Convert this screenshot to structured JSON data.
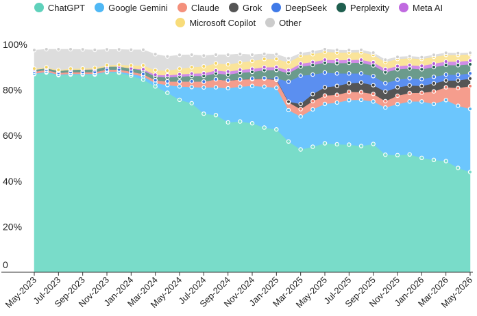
{
  "chart_data": {
    "type": "area",
    "stacked": true,
    "markers": "circle",
    "title": "",
    "xlabel": "",
    "ylabel": "",
    "ylim": [
      0,
      100
    ],
    "yticks": [
      0,
      20,
      40,
      60,
      80,
      100
    ],
    "ytick_labels": [
      "0",
      "20%",
      "40%",
      "60%",
      "80%",
      "100%"
    ],
    "legend_position": "top-center",
    "x": [
      "May-2023",
      "Jun-2023",
      "Jul-2023",
      "Aug-2023",
      "Sep-2023",
      "Oct-2023",
      "Nov-2023",
      "Dec-2023",
      "Jan-2024",
      "Feb-2024",
      "Mar-2024",
      "Apr-2024",
      "May-2024",
      "Jun-2024",
      "Jul-2024",
      "Aug-2024",
      "Sep-2024",
      "Oct-2024",
      "Nov-2024",
      "Dec-2024",
      "Jan-2025",
      "Feb-2025",
      "Mar-2025",
      "Apr-2025",
      "May-2025",
      "Jun-2025",
      "Jul-2025",
      "Aug-2025",
      "Sep-2025",
      "Oct-2025",
      "Nov-2025",
      "Dec-2025",
      "Jan-2026",
      "Feb-2026",
      "Mar-2026",
      "Apr-2026",
      "May-2026"
    ],
    "x_tick_labels": [
      "May-2023",
      "Jul-2023",
      "Sep-2023",
      "Nov-2023",
      "Jan-2024",
      "Mar-2024",
      "May-2024",
      "Jul-2024",
      "Sep-2024",
      "Nov-2024",
      "Jan-2025",
      "Mar-2025",
      "May-2025",
      "Jul-2025",
      "Sep-2025",
      "Nov-2025",
      "Jan-2026",
      "Mar-2026",
      "May-2026"
    ],
    "series": [
      {
        "name": "ChatGPT",
        "color": "#79dcc9",
        "marker_color": "#79dcc9",
        "values": [
          87,
          87.7,
          86.5,
          86.8,
          86.8,
          86.8,
          87.8,
          87.6,
          86.3,
          84.6,
          81.6,
          78.8,
          75.7,
          74.2,
          69.6,
          69,
          65.8,
          66.2,
          65.4,
          63.5,
          62.7,
          57.4,
          53.9,
          55.1,
          56.6,
          56.2,
          56.0,
          55.4,
          56.3,
          51.6,
          51.4,
          51.7,
          50.2,
          49.3,
          48.8,
          45.8,
          44.0
        ]
      },
      {
        "name": "Google Gemini",
        "color": "#6cc6fd",
        "marker_color": "#5ab8f0",
        "values": [
          0.2,
          0.3,
          0.3,
          0.3,
          0.3,
          0.3,
          0.3,
          0.5,
          0.8,
          1.4,
          1.4,
          3.4,
          5.9,
          7.1,
          11.5,
          12.2,
          15,
          15.3,
          16.4,
          18,
          18.3,
          13.8,
          14.5,
          16.4,
          17.3,
          18.3,
          19.6,
          20.3,
          18.7,
          20.7,
          22.4,
          23.3,
          24.8,
          24.6,
          26.8,
          27.3,
          27.7
        ]
      },
      {
        "name": "Claude",
        "color": "#f59d8d",
        "marker_color": "#f08070",
        "values": [
          0.9,
          0.8,
          0.8,
          0.8,
          0.8,
          0.8,
          0.9,
          0.9,
          1,
          1,
          1.3,
          1.6,
          2.1,
          2.5,
          2.6,
          3.5,
          3.3,
          3.1,
          3,
          3.5,
          3.4,
          3.4,
          3.2,
          3.6,
          3.7,
          3.4,
          3.6,
          3.4,
          3.3,
          2.8,
          3.7,
          3.7,
          3.8,
          5.5,
          5.6,
          7.8,
          10.0
        ]
      },
      {
        "name": "Grok",
        "color": "#555555",
        "marker_color": "#444444",
        "values": [
          0,
          0,
          0,
          0,
          0,
          0,
          0,
          0,
          0,
          0,
          0,
          0,
          0,
          0,
          0,
          0,
          0.1,
          0.1,
          0.2,
          0.2,
          0.3,
          0.3,
          2.3,
          3.1,
          3.6,
          3.9,
          3.8,
          4.2,
          3.8,
          4.2,
          3.7,
          3.3,
          3.0,
          3.5,
          3.0,
          3.3,
          3.3
        ]
      },
      {
        "name": "DeepSeek",
        "color": "#5b8ff0",
        "marker_color": "#3d78e8",
        "values": [
          0,
          0,
          0,
          0,
          0,
          0,
          0,
          0,
          0,
          0,
          0,
          0,
          0,
          0,
          0,
          0,
          0,
          0,
          0,
          0,
          0.5,
          8.8,
          12.4,
          8.6,
          6.5,
          5.5,
          4.3,
          4.0,
          4.0,
          3.7,
          3.4,
          3.2,
          3.0,
          2.9,
          2.6,
          2.5,
          2.3
        ]
      },
      {
        "name": "Perplexity",
        "color": "#6b9b8c",
        "marker_color": "#1f5f4f",
        "values": [
          0.8,
          0.8,
          0.8,
          1,
          1.1,
          1.2,
          1.3,
          1.3,
          1.4,
          1.6,
          1.6,
          1.8,
          2.2,
          2.4,
          2.5,
          2.6,
          2.6,
          2.9,
          3,
          3.5,
          3.6,
          3.7,
          4,
          4.2,
          4.3,
          4.5,
          4.6,
          4.7,
          4.7,
          4.8,
          4.5,
          4.3,
          4.3,
          4.3,
          4.2,
          4.2,
          4.0
        ]
      },
      {
        "name": "Meta AI",
        "color": "#d18ce8",
        "marker_color": "#b35ad6",
        "values": [
          0,
          0,
          0,
          0,
          0,
          0,
          0,
          0,
          0,
          0.5,
          0.8,
          0.9,
          1,
          1,
          1.2,
          1.3,
          1.3,
          1.3,
          1.3,
          1.3,
          1.3,
          1.3,
          1.3,
          1.3,
          1.3,
          1.3,
          1.3,
          1.3,
          1.4,
          1.4,
          1.4,
          1.4,
          1.5,
          1.5,
          1.5,
          1.6,
          1.6
        ]
      },
      {
        "name": "Microsoft Copilot",
        "color": "#fae49a",
        "marker_color": "#f5d45f",
        "values": [
          0.5,
          0.4,
          0.4,
          0.5,
          0.5,
          0.6,
          0.6,
          0.8,
          1.3,
          1.7,
          2.0,
          2.0,
          2.5,
          2.8,
          3.0,
          3.1,
          3.2,
          3.2,
          3.5,
          3.6,
          3.5,
          3.5,
          3.4,
          3.4,
          3.5,
          3.4,
          3.3,
          3.3,
          3.2,
          3.1,
          3.1,
          3.1,
          3.0,
          3.0,
          2.9,
          2.9,
          2.8
        ]
      },
      {
        "name": "Other",
        "color": "#dddddd",
        "marker_color": "#cfcfcf",
        "values": [
          8.1,
          7.9,
          9.1,
          8.5,
          8.3,
          7.9,
          6.9,
          6.7,
          6.9,
          6.9,
          7.0,
          6.2,
          6.0,
          5.5,
          4.7,
          3.8,
          4.2,
          3.7,
          2.7,
          2.3,
          2.1,
          1.7,
          1.2,
          1.2,
          1.1,
          1.1,
          1.0,
          1.0,
          1.0,
          1.0,
          0.9,
          0.8,
          0.8,
          0.8,
          0.9,
          0.8,
          0.6
        ]
      }
    ]
  }
}
